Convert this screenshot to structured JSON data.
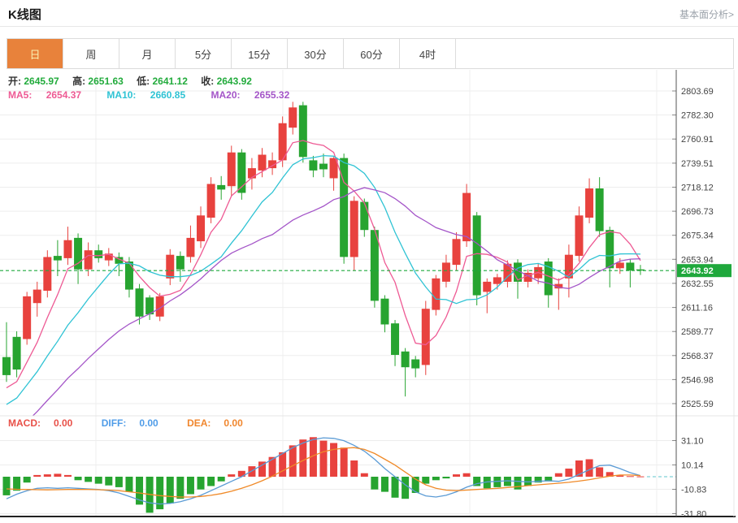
{
  "header": {
    "title": "K线图",
    "link": "基本面分析>"
  },
  "tabs": [
    {
      "label": "日",
      "active": true
    },
    {
      "label": "周",
      "active": false
    },
    {
      "label": "月",
      "active": false
    },
    {
      "label": "5分",
      "active": false
    },
    {
      "label": "15分",
      "active": false
    },
    {
      "label": "30分",
      "active": false
    },
    {
      "label": "60分",
      "active": false
    },
    {
      "label": "4时",
      "active": false
    }
  ],
  "quote": {
    "open_label": "开:",
    "open": "2645.97",
    "high_label": "高:",
    "high": "2651.63",
    "low_label": "低:",
    "low": "2641.12",
    "close_label": "收:",
    "close": "2643.92"
  },
  "ma": {
    "ma5_label": "MA5:",
    "ma5": "2654.37",
    "ma10_label": "MA10:",
    "ma10": "2660.85",
    "ma20_label": "MA20:",
    "ma20": "2655.32"
  },
  "macd_row": {
    "macd_label": "MACD:",
    "macd": "0.00",
    "diff_label": "DIFF:",
    "diff": "0.00",
    "dea_label": "DEA:",
    "dea": "0.00"
  },
  "colors": {
    "up": "#e8423e",
    "down": "#27a430",
    "ma5": "#ee5a94",
    "ma10": "#2fc3d4",
    "ma20": "#a455c8",
    "diff": "#5b9bd5",
    "dea": "#f08a28",
    "tab_active_bg": "#e8823b",
    "tab_active_text": "#faf0b0",
    "price_tag": "#1fa83c",
    "value_green": "#22ab3c"
  },
  "chart_data": {
    "type": "candlestick+macd",
    "legend": [
      "MA5",
      "MA10",
      "MA20",
      "MACD",
      "DIFF",
      "DEA"
    ],
    "price_axis_ticks": [
      "2803.69",
      "2782.30",
      "2760.91",
      "2739.51",
      "2718.12",
      "2696.73",
      "2675.34",
      "2653.94",
      "2632.55",
      "2611.16",
      "2589.77",
      "2568.37",
      "2546.98",
      "2525.59"
    ],
    "current_price": "2643.92",
    "macd_axis_ticks": [
      "31.10",
      "10.14",
      "-10.83",
      "-31.80"
    ],
    "grid": true,
    "candles": [
      [
        2567,
        2598,
        2545,
        2551
      ],
      [
        2585,
        2590,
        2549,
        2556
      ],
      [
        2583,
        2625,
        2578,
        2621
      ],
      [
        2615,
        2634,
        2603,
        2627
      ],
      [
        2626,
        2662,
        2620,
        2656
      ],
      [
        2657,
        2671,
        2639,
        2653
      ],
      [
        2655,
        2683,
        2649,
        2671
      ],
      [
        2673,
        2677,
        2632,
        2645
      ],
      [
        2645,
        2669,
        2639,
        2662
      ],
      [
        2662,
        2667,
        2651,
        2655
      ],
      [
        2653,
        2664,
        2648,
        2659
      ],
      [
        2656,
        2660,
        2639,
        2650
      ],
      [
        2652,
        2656,
        2620,
        2627
      ],
      [
        2628,
        2632,
        2596,
        2603
      ],
      [
        2620,
        2622,
        2600,
        2605
      ],
      [
        2603,
        2624,
        2599,
        2621
      ],
      [
        2637,
        2663,
        2631,
        2658
      ],
      [
        2657,
        2661,
        2634,
        2645
      ],
      [
        2656,
        2684,
        2651,
        2673
      ],
      [
        2670,
        2701,
        2664,
        2693
      ],
      [
        2691,
        2727,
        2686,
        2721
      ],
      [
        2720,
        2728,
        2707,
        2716
      ],
      [
        2719,
        2755,
        2710,
        2749
      ],
      [
        2749,
        2752,
        2707,
        2713
      ],
      [
        2726,
        2744,
        2716,
        2735
      ],
      [
        2733,
        2753,
        2727,
        2747
      ],
      [
        2735,
        2749,
        2729,
        2742
      ],
      [
        2742,
        2781,
        2736,
        2775
      ],
      [
        2771,
        2794,
        2765,
        2789
      ],
      [
        2791,
        2794,
        2740,
        2745
      ],
      [
        2742,
        2746,
        2727,
        2733
      ],
      [
        2739,
        2748,
        2727,
        2734
      ],
      [
        2726,
        2745,
        2715,
        2744
      ],
      [
        2744,
        2748,
        2650,
        2656
      ],
      [
        2656,
        2710,
        2644,
        2706
      ],
      [
        2705,
        2708,
        2674,
        2680
      ],
      [
        2680,
        2683,
        2611,
        2617
      ],
      [
        2619,
        2622,
        2589,
        2596
      ],
      [
        2597,
        2600,
        2559,
        2569
      ],
      [
        2572,
        2575,
        2532,
        2558
      ],
      [
        2565,
        2568,
        2549,
        2557
      ],
      [
        2560,
        2617,
        2551,
        2610
      ],
      [
        2609,
        2640,
        2604,
        2637
      ],
      [
        2634,
        2658,
        2629,
        2651
      ],
      [
        2649,
        2678,
        2644,
        2672
      ],
      [
        2670,
        2721,
        2665,
        2713
      ],
      [
        2693,
        2696,
        2613,
        2622
      ],
      [
        2625,
        2637,
        2606,
        2634
      ],
      [
        2632,
        2641,
        2627,
        2638
      ],
      [
        2634,
        2653,
        2629,
        2650
      ],
      [
        2651,
        2654,
        2619,
        2634
      ],
      [
        2634,
        2645,
        2629,
        2642
      ],
      [
        2637,
        2650,
        2632,
        2647
      ],
      [
        2652,
        2655,
        2611,
        2622
      ],
      [
        2628,
        2637,
        2609,
        2632
      ],
      [
        2637,
        2667,
        2620,
        2658
      ],
      [
        2657,
        2701,
        2652,
        2693
      ],
      [
        2691,
        2726,
        2686,
        2717
      ],
      [
        2717,
        2727,
        2674,
        2679
      ],
      [
        2680,
        2683,
        2629,
        2646
      ],
      [
        2646,
        2655,
        2641,
        2651
      ],
      [
        2651,
        2654,
        2629,
        2644
      ],
      [
        2645,
        2649,
        2640,
        2643.92
      ]
    ],
    "ma_periods": [
      5,
      10,
      20
    ],
    "ma_seed_closes": [
      2432,
      2438,
      2444,
      2450,
      2456,
      2462,
      2468,
      2474,
      2480,
      2486,
      2492,
      2498,
      2504,
      2510,
      2516,
      2522,
      2528,
      2534,
      2540,
      2545
    ],
    "macd": {
      "hist": [
        -16,
        -12,
        -5,
        1.5,
        2,
        2.5,
        1.5,
        -3,
        -4.5,
        -6,
        -7.5,
        -9,
        -13,
        -24,
        -31,
        -28,
        -23,
        -19,
        -15,
        -11,
        -8,
        -4,
        2,
        5,
        9,
        13,
        17,
        21,
        27,
        32,
        34,
        31,
        29,
        25,
        14,
        3,
        -11,
        -13,
        -18,
        -19,
        -14,
        -6,
        -3,
        -1.5,
        2,
        3,
        -8,
        -10,
        -9,
        -8,
        -11,
        -8,
        -5,
        -4,
        3,
        7,
        14,
        15,
        8,
        4,
        1,
        0.5,
        0.3
      ],
      "diff": [
        -19,
        -15,
        -12,
        -10,
        -9.5,
        -10,
        -9.5,
        -10,
        -10.5,
        -11,
        -12,
        -14,
        -17,
        -20,
        -22.5,
        -23.5,
        -23,
        -21.5,
        -19,
        -16,
        -12,
        -8,
        -4,
        0,
        5,
        10,
        15,
        20,
        25,
        29,
        32,
        33.5,
        33,
        31,
        27,
        22,
        15,
        7,
        0,
        -7,
        -13,
        -16.5,
        -17.5,
        -16,
        -13,
        -9,
        -6,
        -4.5,
        -4,
        -3.5,
        -4,
        -4.5,
        -4,
        -3.5,
        -4,
        -2,
        2,
        6,
        9.5,
        10,
        7,
        3.5,
        1
      ],
      "dea": [
        -10.5,
        -10.8,
        -11,
        -11.2,
        -11.3,
        -11.2,
        -11,
        -11,
        -11,
        -11.2,
        -11.5,
        -12,
        -13,
        -14,
        -15.2,
        -16.3,
        -17,
        -17.5,
        -17.5,
        -17,
        -16,
        -14.5,
        -12.5,
        -10,
        -7,
        -3.5,
        0.5,
        5,
        9.5,
        14,
        18,
        21.5,
        23.5,
        24.5,
        25,
        23.5,
        20,
        15,
        10,
        4,
        -2,
        -7,
        -10,
        -11.5,
        -12,
        -11.5,
        -11,
        -10.5,
        -10,
        -9.3,
        -8.5,
        -7.7,
        -7,
        -6.3,
        -5.6,
        -4.8,
        -3.8,
        -2.5,
        -1,
        0.5,
        1.5,
        1.5,
        1
      ]
    }
  }
}
